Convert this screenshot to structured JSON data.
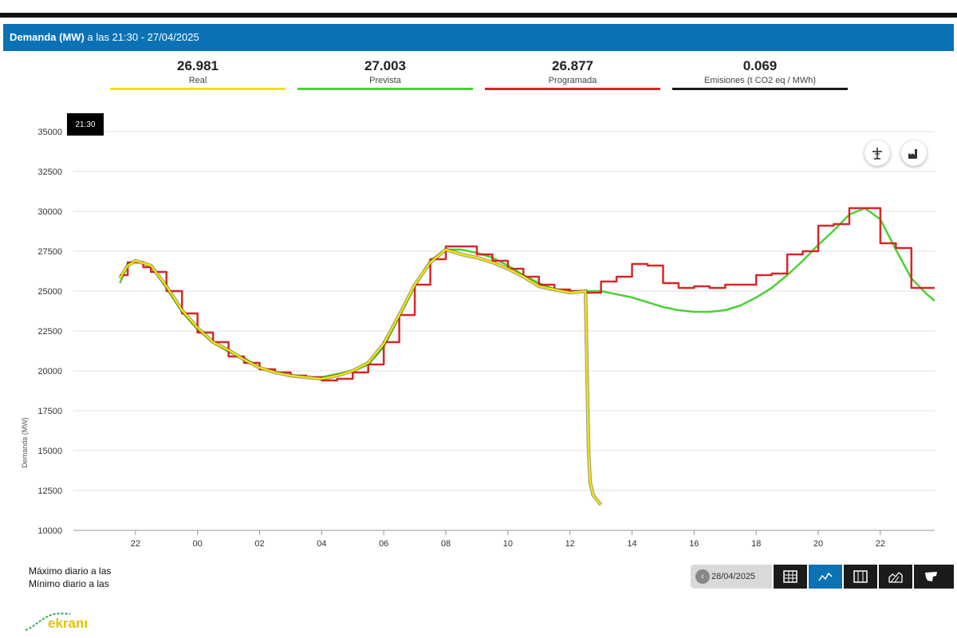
{
  "header": {
    "title_bold": "Demanda (MW)",
    "title_rest": " a las 21:30 - 27/04/2025"
  },
  "legend": [
    {
      "value": "26.981",
      "label": "Real",
      "color": "#f2e200"
    },
    {
      "value": "27.003",
      "label": "Prevista",
      "color": "#4cd137"
    },
    {
      "value": "26.877",
      "label": "Programada",
      "color": "#d62828"
    },
    {
      "value": "0.069",
      "label": "Emisiones (t CO2 eq / MWh)",
      "color": "#1a1a1a"
    }
  ],
  "tooltip_time": "21:30",
  "stats": {
    "max_label": "Máximo diario a las",
    "min_label": "Mínimo diario a las"
  },
  "toolbar": {
    "date": "28/04/2025"
  },
  "logo": {
    "text": "ekranı"
  },
  "icons": [
    "wind-tower-icon",
    "factory-icon",
    "chevron-left-icon",
    "table-icon",
    "line-chart-icon",
    "grid-icon",
    "hatch-chart-icon",
    "map-icon"
  ],
  "chart_data": {
    "type": "line",
    "ylabel": "Demanda (MW)",
    "ylim": [
      10000,
      35000
    ],
    "yticks": [
      10000,
      12500,
      15000,
      17500,
      20000,
      22500,
      25000,
      27500,
      30000,
      32500,
      35000
    ],
    "x_range_hours": [
      20.0,
      47.75
    ],
    "xticks": [
      {
        "h": 22,
        "label": "22"
      },
      {
        "h": 24,
        "label": "00"
      },
      {
        "h": 26,
        "label": "02"
      },
      {
        "h": 28,
        "label": "04"
      },
      {
        "h": 30,
        "label": "06"
      },
      {
        "h": 32,
        "label": "08"
      },
      {
        "h": 34,
        "label": "10"
      },
      {
        "h": 36,
        "label": "12"
      },
      {
        "h": 38,
        "label": "14"
      },
      {
        "h": 40,
        "label": "16"
      },
      {
        "h": 42,
        "label": "18"
      },
      {
        "h": 44,
        "label": "20"
      },
      {
        "h": 46,
        "label": "22"
      }
    ],
    "grid": true,
    "series": [
      {
        "name": "Prevista",
        "color": "#4cd137",
        "step": false,
        "points": [
          [
            21.5,
            25500
          ],
          [
            21.75,
            26700
          ],
          [
            22.0,
            26900
          ],
          [
            22.5,
            26600
          ],
          [
            23.0,
            25200
          ],
          [
            23.5,
            23700
          ],
          [
            24.0,
            22600
          ],
          [
            24.5,
            21800
          ],
          [
            25.0,
            21200
          ],
          [
            25.5,
            20800
          ],
          [
            26.0,
            20200
          ],
          [
            26.5,
            19900
          ],
          [
            27.0,
            19700
          ],
          [
            27.5,
            19600
          ],
          [
            28.0,
            19600
          ],
          [
            28.5,
            19800
          ],
          [
            29.0,
            20000
          ],
          [
            29.5,
            20400
          ],
          [
            30.0,
            21500
          ],
          [
            30.5,
            23400
          ],
          [
            31.0,
            25300
          ],
          [
            31.5,
            26900
          ],
          [
            32.0,
            27600
          ],
          [
            32.5,
            27600
          ],
          [
            33.0,
            27400
          ],
          [
            33.5,
            27100
          ],
          [
            34.0,
            26600
          ],
          [
            34.5,
            26000
          ],
          [
            35.0,
            25500
          ],
          [
            35.5,
            25100
          ],
          [
            36.0,
            25000
          ],
          [
            36.5,
            25000
          ],
          [
            37.0,
            25000
          ],
          [
            37.5,
            24800
          ],
          [
            38.0,
            24600
          ],
          [
            38.5,
            24300
          ],
          [
            39.0,
            24000
          ],
          [
            39.5,
            23800
          ],
          [
            40.0,
            23700
          ],
          [
            40.5,
            23700
          ],
          [
            41.0,
            23800
          ],
          [
            41.5,
            24100
          ],
          [
            42.0,
            24600
          ],
          [
            42.5,
            25200
          ],
          [
            43.0,
            26000
          ],
          [
            43.5,
            26900
          ],
          [
            44.0,
            27900
          ],
          [
            44.5,
            28800
          ],
          [
            45.0,
            29800
          ],
          [
            45.5,
            30200
          ],
          [
            46.0,
            29500
          ],
          [
            46.5,
            27600
          ],
          [
            47.0,
            25800
          ],
          [
            47.5,
            24800
          ],
          [
            47.75,
            24400
          ]
        ]
      },
      {
        "name": "Programada",
        "color": "#d62828",
        "step": true,
        "points": [
          [
            21.5,
            26000
          ],
          [
            21.75,
            26800
          ],
          [
            22.0,
            26800
          ],
          [
            22.25,
            26500
          ],
          [
            22.5,
            26200
          ],
          [
            23.0,
            25000
          ],
          [
            23.5,
            23600
          ],
          [
            24.0,
            22400
          ],
          [
            24.5,
            21800
          ],
          [
            25.0,
            20900
          ],
          [
            25.5,
            20500
          ],
          [
            26.0,
            20100
          ],
          [
            26.5,
            19900
          ],
          [
            27.0,
            19700
          ],
          [
            27.5,
            19600
          ],
          [
            28.0,
            19400
          ],
          [
            28.5,
            19500
          ],
          [
            29.0,
            19900
          ],
          [
            29.5,
            20400
          ],
          [
            30.0,
            21800
          ],
          [
            30.5,
            23500
          ],
          [
            31.0,
            25400
          ],
          [
            31.5,
            27000
          ],
          [
            32.0,
            27800
          ],
          [
            32.75,
            27800
          ],
          [
            33.0,
            27300
          ],
          [
            33.5,
            26900
          ],
          [
            34.0,
            26400
          ],
          [
            34.5,
            25900
          ],
          [
            35.0,
            25400
          ],
          [
            35.5,
            25100
          ],
          [
            36.0,
            25000
          ],
          [
            36.5,
            24900
          ],
          [
            37.0,
            25600
          ],
          [
            37.5,
            25900
          ],
          [
            38.0,
            26700
          ],
          [
            38.5,
            26600
          ],
          [
            39.0,
            25500
          ],
          [
            39.5,
            25200
          ],
          [
            40.0,
            25300
          ],
          [
            40.5,
            25200
          ],
          [
            41.0,
            25400
          ],
          [
            41.5,
            25400
          ],
          [
            42.0,
            26000
          ],
          [
            42.5,
            26100
          ],
          [
            43.0,
            27300
          ],
          [
            43.5,
            27500
          ],
          [
            44.0,
            29100
          ],
          [
            44.5,
            29200
          ],
          [
            45.0,
            30200
          ],
          [
            45.5,
            30200
          ],
          [
            46.0,
            28000
          ],
          [
            46.5,
            27700
          ],
          [
            47.0,
            25200
          ],
          [
            47.5,
            25200
          ],
          [
            47.75,
            25200
          ]
        ]
      },
      {
        "name": "Real",
        "color": "#f2e200",
        "step": false,
        "points": [
          [
            21.5,
            25800
          ],
          [
            21.75,
            26600
          ],
          [
            22.0,
            26900
          ],
          [
            22.5,
            26600
          ],
          [
            23.0,
            25300
          ],
          [
            23.5,
            23800
          ],
          [
            24.0,
            22700
          ],
          [
            24.5,
            21800
          ],
          [
            25.0,
            21300
          ],
          [
            25.5,
            20700
          ],
          [
            26.0,
            20200
          ],
          [
            26.5,
            19900
          ],
          [
            27.0,
            19700
          ],
          [
            27.5,
            19600
          ],
          [
            28.0,
            19500
          ],
          [
            28.5,
            19700
          ],
          [
            29.0,
            20000
          ],
          [
            29.5,
            20500
          ],
          [
            30.0,
            21700
          ],
          [
            30.5,
            23500
          ],
          [
            31.0,
            25400
          ],
          [
            31.5,
            26800
          ],
          [
            32.0,
            27600
          ],
          [
            32.5,
            27300
          ],
          [
            33.0,
            27100
          ],
          [
            33.5,
            26800
          ],
          [
            34.0,
            26400
          ],
          [
            34.5,
            25900
          ],
          [
            35.0,
            25300
          ],
          [
            35.5,
            25100
          ],
          [
            36.0,
            24900
          ],
          [
            36.5,
            25000
          ],
          [
            36.6,
            15000
          ],
          [
            36.65,
            13000
          ],
          [
            36.75,
            12200
          ],
          [
            37.0,
            11600
          ]
        ]
      }
    ]
  }
}
